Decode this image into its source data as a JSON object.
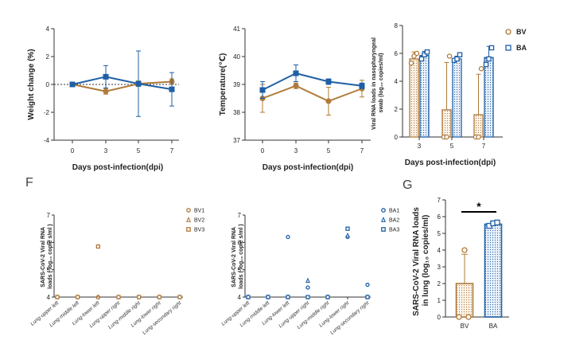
{
  "colors": {
    "BV": "#b07a3a",
    "BA": "#1f5fa6"
  },
  "panel_letters": {
    "F": "F",
    "G": "G"
  },
  "chart_data": [
    {
      "type": "line",
      "id": "weight",
      "xlabel": "Days post-infection(dpi)",
      "ylabel": "Weight change (%)",
      "x": [
        0,
        3,
        5,
        7
      ],
      "ylim": [
        -4,
        4
      ],
      "yticks": [
        -4,
        -2,
        0,
        2,
        4
      ],
      "reference_line": 0,
      "series": [
        {
          "key": "BV",
          "values": [
            0,
            -0.5,
            0.05,
            0.2
          ],
          "err": [
            0,
            0.2,
            0.2,
            0.2
          ]
        },
        {
          "key": "BA",
          "values": [
            0,
            0.55,
            0.05,
            -0.35
          ],
          "err": [
            0,
            0.8,
            2.35,
            1.2
          ]
        }
      ]
    },
    {
      "type": "line",
      "id": "temperature",
      "xlabel": "Days post-infection(dpi)",
      "ylabel": "Temperature(℃)",
      "x": [
        0,
        3,
        5,
        7
      ],
      "ylim": [
        37,
        41
      ],
      "yticks": [
        37,
        38,
        39,
        40,
        41
      ],
      "series": [
        {
          "key": "BV",
          "values": [
            38.5,
            38.95,
            38.4,
            38.85
          ],
          "err": [
            0.5,
            0.1,
            0.5,
            0.3
          ]
        },
        {
          "key": "BA",
          "values": [
            38.8,
            39.4,
            39.1,
            38.95
          ],
          "err": [
            0.3,
            0.3,
            0.1,
            0.1
          ]
        }
      ]
    },
    {
      "type": "bar",
      "id": "swab",
      "xlabel": "Days post-infection(dpi)",
      "ylabel": "Viral RNA loads in nasopharyngeal swab (log10 copies/ml)",
      "categories": [
        "3",
        "5",
        "7"
      ],
      "ylim": [
        0,
        8
      ],
      "yticks": [
        0,
        2,
        4,
        6,
        8
      ],
      "legend": [
        "BV",
        "BA"
      ],
      "series": [
        {
          "key": "BV",
          "values": [
            5.6,
            1.95,
            1.6
          ],
          "err": [
            0.5,
            3.4,
            2.9
          ],
          "points": [
            [
              5.3,
              5.8,
              6.0
            ],
            [
              0,
              0,
              5.8
            ],
            [
              0,
              0,
              4.9
            ]
          ]
        },
        {
          "key": "BA",
          "values": [
            5.85,
            5.6,
            5.7
          ],
          "err": [
            0.3,
            0.2,
            0.8
          ],
          "points": [
            [
              5.6,
              5.9,
              6.1
            ],
            [
              5.5,
              5.6,
              5.9
            ],
            [
              5.2,
              5.6,
              6.4
            ]
          ]
        }
      ]
    },
    {
      "type": "scatter",
      "id": "tissue_BV",
      "ylabel_line1": "SARS-CoV-2  Viral  RNA",
      "ylabel_line2": "loads ( log₁₀ copie s/ml )",
      "ylim": [
        4,
        7
      ],
      "yticks": [
        4,
        5,
        6,
        7
      ],
      "categories": [
        "Lung-upper left",
        "Lung-middle left",
        "Lung-lower left",
        "Lung-upper right",
        "Lung-middle right",
        "Lung-lower right",
        "Lung-secondary right"
      ],
      "legend": [
        "BV1",
        "BV2",
        "BV3"
      ],
      "series": [
        {
          "key": "BV1",
          "marker": "circle",
          "values": [
            4,
            4,
            4,
            4,
            4,
            4,
            4
          ]
        },
        {
          "key": "BV2",
          "marker": "triangle",
          "values": [
            4,
            4,
            4,
            4,
            4,
            4,
            4
          ]
        },
        {
          "key": "BV3",
          "marker": "square",
          "values": [
            4,
            4,
            5.85,
            4,
            4,
            4,
            4
          ]
        }
      ]
    },
    {
      "type": "scatter",
      "id": "tissue_BA",
      "ylabel_line1": "SARS-CoV-2  Viral  RNA",
      "ylabel_line2": "loads ( log₁₀ copie s/ml )",
      "ylim": [
        4,
        7
      ],
      "yticks": [
        4,
        5,
        6,
        7
      ],
      "categories": [
        "Lung-upper left",
        "Lung-middle left",
        "Lung-lower left",
        "Lung-upper right",
        "Lung-middle right",
        "Lung-lower right",
        "Lung-secondary right"
      ],
      "legend": [
        "BA1",
        "BA2",
        "BA3"
      ],
      "series": [
        {
          "key": "BA1",
          "marker": "circle",
          "values": [
            4,
            4,
            6.2,
            4.35,
            4,
            6.2,
            4.45
          ]
        },
        {
          "key": "BA2",
          "marker": "triangle",
          "values": [
            4,
            4,
            4,
            4.6,
            4,
            6.25,
            4
          ]
        },
        {
          "key": "BA3",
          "marker": "square",
          "values": [
            4,
            4,
            4,
            4,
            4,
            6.5,
            4
          ]
        }
      ]
    },
    {
      "type": "bar",
      "id": "lung",
      "ylabel_line1": "SARS-CoV-2 Viral RNA loads",
      "ylabel_line2": "in lung (log₁₀ copies/ml)",
      "categories": [
        "BV",
        "BA"
      ],
      "ylim": [
        0,
        7
      ],
      "yticks": [
        0,
        1,
        2,
        3,
        4,
        5,
        6,
        7
      ],
      "values": [
        2.0,
        5.55
      ],
      "err": [
        1.75,
        0.15
      ],
      "points": [
        [
          0,
          0,
          4.0
        ],
        [
          5.45,
          5.6,
          5.65
        ]
      ],
      "significance": "*"
    }
  ]
}
